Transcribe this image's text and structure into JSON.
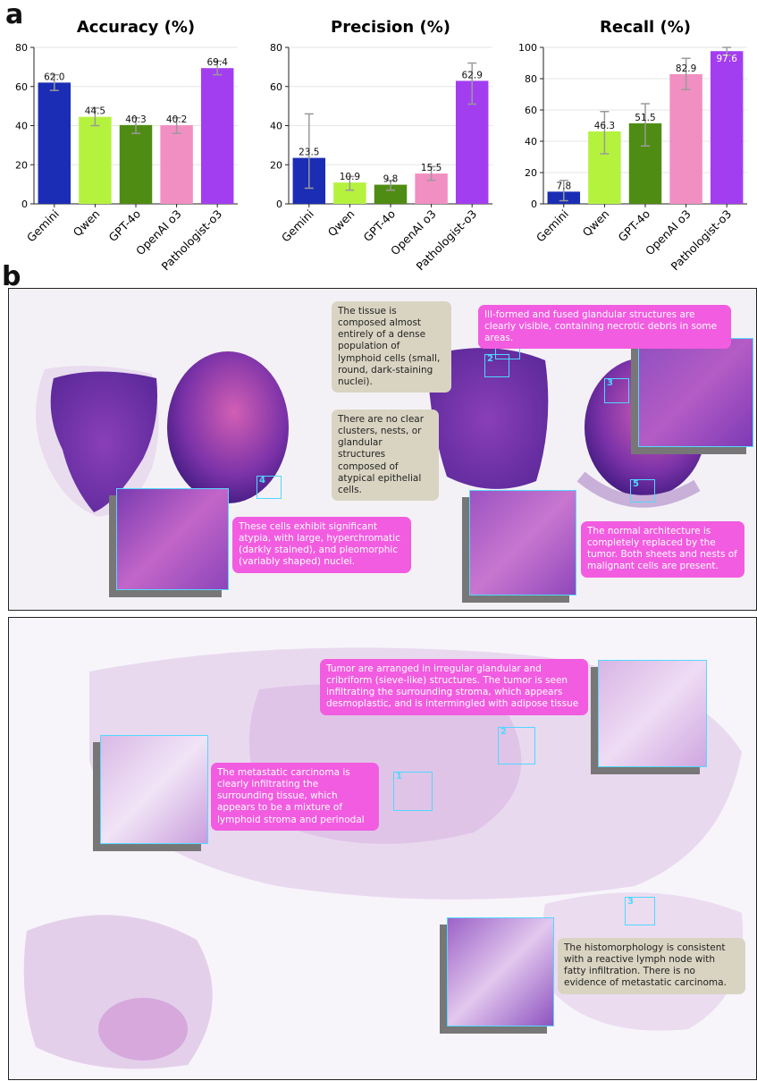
{
  "panel_a_label": "a",
  "panel_b_label": "b",
  "chart_data": [
    {
      "type": "bar",
      "title": "Accuracy (%)",
      "categories": [
        "Gemini",
        "Qwen",
        "GPT-4o",
        "OpenAI o3",
        "Pathologist-o3"
      ],
      "values": [
        62.0,
        44.5,
        40.3,
        40.2,
        69.4
      ],
      "value_labels": [
        "62.0",
        "44.5",
        "40.3",
        "40.2",
        "69.4"
      ],
      "error_low": [
        58,
        40,
        36,
        36,
        66
      ],
      "error_high": [
        66,
        49,
        44,
        44,
        73
      ],
      "ylim": [
        0,
        80
      ],
      "yticks": [
        "0",
        "20",
        "40",
        "60",
        "80"
      ],
      "colors": [
        "#1a2db4",
        "#b5f23e",
        "#4f8c14",
        "#f18fc2",
        "#a33ef0"
      ],
      "grid": true
    },
    {
      "type": "bar",
      "title": "Precision (%)",
      "categories": [
        "Gemini",
        "Qwen",
        "GPT-4o",
        "OpenAI o3",
        "Pathologist-o3"
      ],
      "values": [
        23.5,
        10.9,
        9.8,
        15.5,
        62.9
      ],
      "value_labels": [
        "23.5",
        "10.9",
        "9.8",
        "15.5",
        "62.9"
      ],
      "error_low": [
        8,
        7,
        7,
        12,
        51
      ],
      "error_high": [
        46,
        14,
        12,
        19,
        72
      ],
      "ylim": [
        0,
        80
      ],
      "yticks": [
        "0",
        "20",
        "40",
        "60",
        "80"
      ],
      "colors": [
        "#1a2db4",
        "#b5f23e",
        "#4f8c14",
        "#f18fc2",
        "#a33ef0"
      ],
      "grid": true
    },
    {
      "type": "bar",
      "title": "Recall (%)",
      "categories": [
        "Gemini",
        "Qwen",
        "GPT-4o",
        "OpenAI o3",
        "Pathologist-o3"
      ],
      "values": [
        7.8,
        46.3,
        51.5,
        82.9,
        97.6
      ],
      "value_labels": [
        "7.8",
        "46.3",
        "51.5",
        "82.9",
        "97.6"
      ],
      "error_low": [
        2,
        32,
        37,
        73,
        95
      ],
      "error_high": [
        15,
        59,
        64,
        93,
        100
      ],
      "ylim": [
        0,
        100
      ],
      "yticks": [
        "0",
        "20",
        "40",
        "60",
        "80",
        "100"
      ],
      "colors": [
        "#1a2db4",
        "#b5f23e",
        "#4f8c14",
        "#f18fc2",
        "#a33ef0"
      ],
      "grid": true
    }
  ],
  "case1": {
    "roi_labels": [
      "1",
      "2",
      "3",
      "4",
      "5"
    ],
    "notes": {
      "lymphoid": "The tissue is composed almost entirely of a dense population of lymphoid cells (small, round, dark-staining nuclei).",
      "no_clusters": "There are no clear clusters, nests, or glandular structures composed of atypical epithelial cells.",
      "glandular": "Ill-formed and fused glandular structures are clearly visible, containing necrotic debris in some areas.",
      "atypia": "These cells exhibit significant atypia, with large, hyperchromatic (darkly stained), and pleomorphic (variably shaped) nuclei.",
      "architecture": "The normal architecture is completely replaced by the tumor. Both sheets and nests of malignant cells are present."
    }
  },
  "case2": {
    "roi_labels": [
      "1",
      "2",
      "3"
    ],
    "notes": {
      "cribriform": "Tumor are arranged in irregular glandular and cribriform (sieve-like) structures. The tumor is seen infiltrating the surrounding stroma, which appears desmoplastic, and is intermingled with adipose tissue",
      "metastatic": "The metastatic carcinoma is clearly infiltrating the surrounding tissue, which appears to be a mixture of lymphoid stroma and perinodal",
      "reactive": "The histomorphology is consistent with a reactive lymph node with fatty infiltration. There is no evidence of metastatic carcinoma."
    }
  }
}
